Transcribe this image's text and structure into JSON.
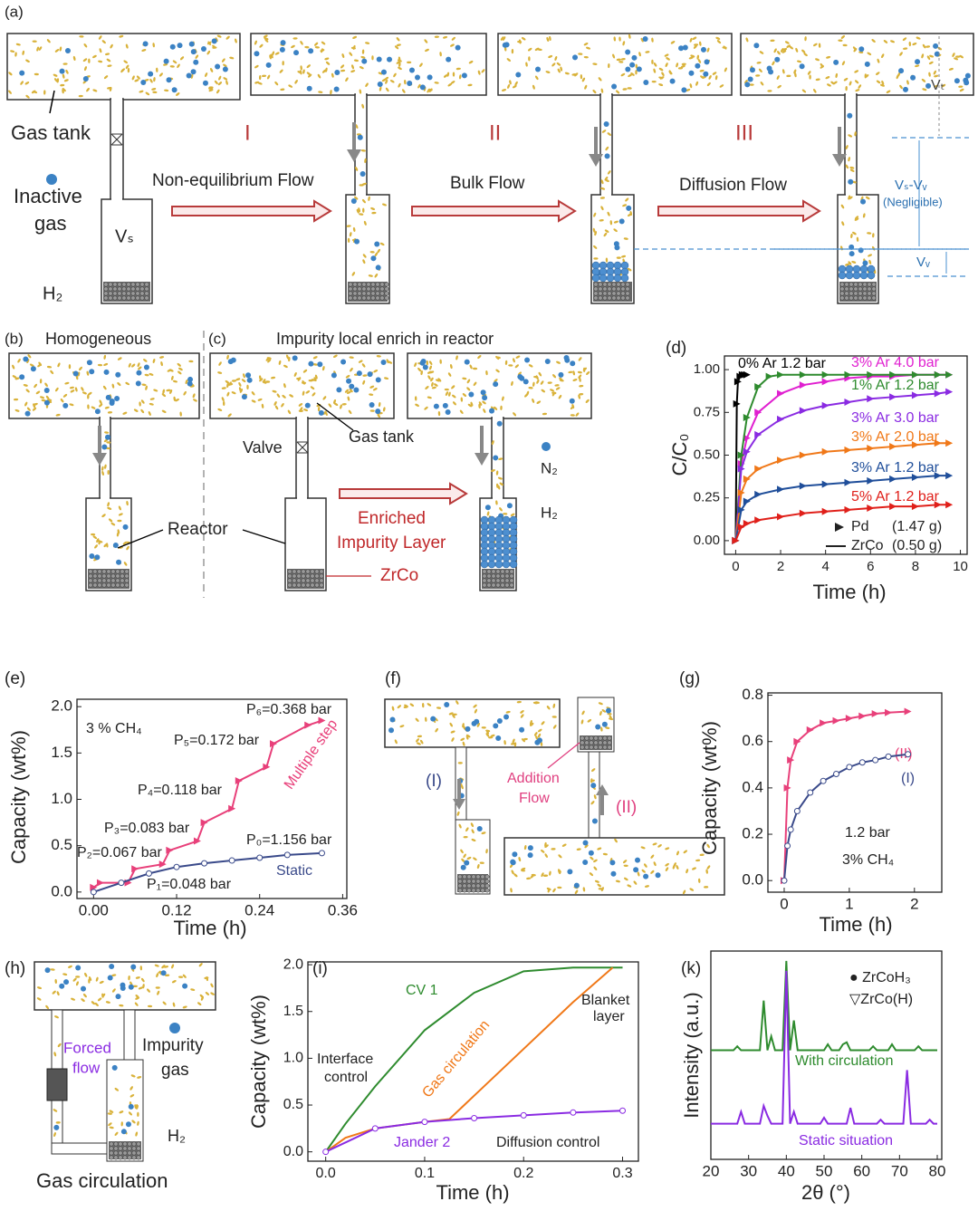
{
  "figure": {
    "labels": [
      "(a)",
      "Gas tank",
      "Inactive",
      "gas",
      "H₂",
      "Vₛ",
      "I",
      "II",
      "III",
      "Non-equilibrium Flow",
      "Bulk Flow",
      "Diffusion Flow",
      "Vₜ",
      "Vₛ-Vᵥ",
      "(Negligible)",
      "Vᵥ",
      "(b)",
      "Homogeneous",
      "(c)",
      "Impurity local enrich in reactor",
      "Reactor",
      "Valve",
      "Gas tank",
      "Enriched",
      "Impurity Layer",
      "ZrCo",
      "N₂",
      "H₂",
      "(d)",
      "(e)",
      "(f)",
      "(I)",
      "Addition",
      "Flow",
      "(II)",
      "(g)",
      "(h)",
      "Forced",
      "flow",
      "Impurity",
      "gas",
      "H₂",
      "Gas circulation",
      "(i)",
      "(k)"
    ]
  },
  "chart_data": [
    {
      "type": "line",
      "xlabel": "Time (h)",
      "ylabel": "C/C₀",
      "xlim": [
        -0.5,
        10.3
      ],
      "ylim": [
        -0.08,
        1.08
      ],
      "xticks": [
        0,
        2,
        4,
        6,
        8,
        10
      ],
      "yticks": [
        {
          "value": 0,
          "label": "0.00"
        },
        {
          "value": 0.25,
          "label": "0.25"
        },
        {
          "value": 0.5,
          "label": "0.50"
        },
        {
          "value": 0.75,
          "label": "0.75"
        },
        {
          "value": 1,
          "label": "1.00"
        }
      ],
      "series": [
        {
          "name": "0% Ar 1.2 bar",
          "color": "#000000",
          "marker": "triangle",
          "x": [
            0,
            0.05,
            0.1,
            0.2,
            0.3,
            0.4,
            0.5
          ],
          "values": [
            0,
            0.8,
            0.93,
            0.96,
            0.97,
            0.97,
            0.97
          ]
        },
        {
          "name": "3% Ar 4.0 bar",
          "color": "#e020d0",
          "marker": "triangle",
          "x": [
            0,
            0.25,
            0.5,
            1,
            2,
            3,
            4,
            5,
            6,
            7,
            8,
            9,
            9.5
          ],
          "values": [
            0,
            0.45,
            0.6,
            0.75,
            0.86,
            0.91,
            0.93,
            0.95,
            0.96,
            0.96,
            0.97,
            0.97,
            0.97
          ]
        },
        {
          "name": "1% Ar 1.2 bar",
          "color": "#2e8b2e",
          "marker": "triangle",
          "x": [
            0,
            0.25,
            0.5,
            1,
            1.5,
            2,
            3,
            4,
            5,
            6,
            7,
            8,
            9,
            9.5
          ],
          "values": [
            0,
            0.5,
            0.72,
            0.9,
            0.96,
            0.97,
            0.97,
            0.97,
            0.97,
            0.97,
            0.97,
            0.97,
            0.97,
            0.97
          ]
        },
        {
          "name": "3% Ar 3.0 bar",
          "color": "#8a2be2",
          "marker": "triangle",
          "x": [
            0,
            0.25,
            0.5,
            1,
            2,
            3,
            4,
            5,
            6,
            7,
            8,
            9,
            9.5
          ],
          "values": [
            0,
            0.42,
            0.52,
            0.62,
            0.71,
            0.76,
            0.79,
            0.81,
            0.83,
            0.84,
            0.85,
            0.86,
            0.87
          ]
        },
        {
          "name": "3% Ar 2.0 bar",
          "color": "#f07818",
          "marker": "triangle",
          "x": [
            0,
            0.25,
            0.5,
            1,
            2,
            3,
            4,
            5,
            6,
            7,
            8,
            9,
            9.5
          ],
          "values": [
            0,
            0.28,
            0.36,
            0.42,
            0.47,
            0.5,
            0.52,
            0.53,
            0.54,
            0.55,
            0.56,
            0.57,
            0.57
          ]
        },
        {
          "name": "3% Ar 1.2 bar",
          "color": "#1f4e9a",
          "marker": "triangle",
          "x": [
            0,
            0.25,
            0.5,
            1,
            2,
            3,
            4,
            5,
            6,
            7,
            8,
            9,
            9.5
          ],
          "values": [
            0,
            0.18,
            0.23,
            0.27,
            0.3,
            0.32,
            0.33,
            0.34,
            0.35,
            0.36,
            0.37,
            0.38,
            0.38
          ]
        },
        {
          "name": "5% Ar 1.2 bar",
          "color": "#e0201a",
          "marker": "triangle",
          "x": [
            0,
            0.25,
            0.5,
            1,
            2,
            3,
            4,
            5,
            6,
            7,
            8,
            9,
            9.5
          ],
          "values": [
            0,
            0.08,
            0.1,
            0.12,
            0.14,
            0.16,
            0.17,
            0.18,
            0.19,
            0.2,
            0.2,
            0.21,
            0.21
          ]
        }
      ],
      "annotations": [
        "Pd",
        "(1.47 g)",
        "ZrCo",
        "(0.50 g)"
      ]
    },
    {
      "type": "line",
      "xlabel": "Time (h)",
      "ylabel": "Capacity (wt%)",
      "xlim": [
        -0.024,
        0.366
      ],
      "ylim": [
        -0.07,
        2.08
      ],
      "xticks": [
        {
          "value": 0,
          "label": "0.00"
        },
        {
          "value": 0.12,
          "label": "0.12"
        },
        {
          "value": 0.24,
          "label": "0.24"
        },
        {
          "value": 0.36,
          "label": "0.36"
        }
      ],
      "yticks": [
        {
          "value": 0,
          "label": "0.0"
        },
        {
          "value": 0.5,
          "label": "0.5"
        },
        {
          "value": 1,
          "label": "1.0"
        },
        {
          "value": 1.5,
          "label": "1.5"
        },
        {
          "value": 2,
          "label": "2.0"
        }
      ],
      "series": [
        {
          "name": "Multiple step",
          "color": "#e8407a",
          "marker": "triangle",
          "x": [
            0,
            0.01,
            0.05,
            0.06,
            0.1,
            0.11,
            0.15,
            0.16,
            0.2,
            0.21,
            0.25,
            0.26,
            0.31,
            0.33
          ],
          "values": [
            0.05,
            0.1,
            0.1,
            0.25,
            0.3,
            0.45,
            0.55,
            0.75,
            0.9,
            1.2,
            1.35,
            1.6,
            1.8,
            1.85
          ]
        },
        {
          "name": "Static",
          "color": "#3a4a8a",
          "marker": "circle",
          "x": [
            0,
            0.04,
            0.08,
            0.12,
            0.16,
            0.2,
            0.24,
            0.28,
            0.33
          ],
          "values": [
            0,
            0.1,
            0.2,
            0.27,
            0.31,
            0.34,
            0.37,
            0.4,
            0.42
          ]
        }
      ],
      "annotations": [
        "3 % CH₄",
        "P₆=0.368 bar",
        "P₅=0.172 bar",
        "P₄=0.118 bar",
        "P₃=0.083 bar",
        "P₂=0.067 bar",
        "P₁=0.048 bar",
        "P₀=1.156 bar"
      ]
    },
    {
      "type": "line",
      "xlabel": "Time (h)",
      "ylabel": "Capacity (wt%)",
      "xlim": [
        -0.25,
        2.42
      ],
      "ylim": [
        -0.05,
        0.81
      ],
      "xticks": [
        0,
        1,
        2
      ],
      "yticks": [
        {
          "value": 0,
          "label": "0.0"
        },
        {
          "value": 0.2,
          "label": "0.2"
        },
        {
          "value": 0.4,
          "label": "0.4"
        },
        {
          "value": 0.6,
          "label": "0.6"
        },
        {
          "value": 0.8,
          "label": "0.8"
        }
      ],
      "series": [
        {
          "name": "(II)",
          "color": "#e8407a",
          "marker": "triangle",
          "x": [
            0,
            0.05,
            0.1,
            0.2,
            0.4,
            0.6,
            0.8,
            1,
            1.2,
            1.4,
            1.6,
            1.9
          ],
          "values": [
            0,
            0.4,
            0.52,
            0.6,
            0.65,
            0.68,
            0.69,
            0.7,
            0.71,
            0.72,
            0.725,
            0.73
          ]
        },
        {
          "name": "(I)",
          "color": "#3a4a8a",
          "marker": "circle",
          "x": [
            0,
            0.05,
            0.1,
            0.2,
            0.4,
            0.6,
            0.8,
            1,
            1.2,
            1.4,
            1.6,
            1.9
          ],
          "values": [
            0,
            0.15,
            0.22,
            0.3,
            0.38,
            0.43,
            0.46,
            0.49,
            0.51,
            0.52,
            0.535,
            0.545
          ]
        }
      ],
      "annotations": [
        "1.2 bar",
        "3% CH₄"
      ]
    },
    {
      "type": "line",
      "xlabel": "Time (h)",
      "ylabel": "Capacity (wt%)",
      "xlim": [
        -0.018,
        0.316
      ],
      "ylim": [
        -0.1,
        2.03
      ],
      "xticks": [
        {
          "value": 0,
          "label": "0.0"
        },
        {
          "value": 0.1,
          "label": "0.1"
        },
        {
          "value": 0.2,
          "label": "0.2"
        },
        {
          "value": 0.3,
          "label": "0.3"
        }
      ],
      "yticks": [
        {
          "value": 0,
          "label": "0.0"
        },
        {
          "value": 0.5,
          "label": "0.5"
        },
        {
          "value": 1,
          "label": "1.0"
        },
        {
          "value": 1.5,
          "label": "1.5"
        },
        {
          "value": 2,
          "label": "2.0"
        }
      ],
      "series": [
        {
          "name": "CV 1",
          "color": "#2e8b2e",
          "marker": "none",
          "x": [
            0,
            0.02,
            0.05,
            0.1,
            0.15,
            0.2,
            0.25,
            0.3
          ],
          "values": [
            0,
            0.3,
            0.7,
            1.3,
            1.7,
            1.93,
            1.97,
            1.97
          ]
        },
        {
          "name": "Gas circulation",
          "color": "#f07818",
          "marker": "none",
          "x": [
            0,
            0.02,
            0.05,
            0.1,
            0.125,
            0.15,
            0.2,
            0.25,
            0.29
          ],
          "values": [
            0,
            0.15,
            0.25,
            0.32,
            0.35,
            0.6,
            1.1,
            1.6,
            1.97
          ]
        },
        {
          "name": "Jander 2",
          "color": "#8a2be2",
          "marker": "circle",
          "x": [
            0,
            0.05,
            0.1,
            0.15,
            0.2,
            0.25,
            0.3
          ],
          "values": [
            0,
            0.25,
            0.32,
            0.36,
            0.39,
            0.42,
            0.44
          ]
        }
      ],
      "annotations": [
        "Diffusion control",
        "Interface",
        "control",
        "Blanket",
        "layer"
      ]
    },
    {
      "type": "line",
      "xlabel": "2θ (°)",
      "ylabel": "Intensity (a.u.)",
      "xlim": [
        20,
        81.2
      ],
      "ylim": [
        0,
        105
      ],
      "xticks": [
        20,
        30,
        40,
        50,
        60,
        70,
        80
      ],
      "series": [
        {
          "name": "With circulation",
          "color": "#2e8b2e",
          "marker": "none",
          "x": [
            20,
            21,
            22,
            23,
            24,
            25,
            26,
            27,
            28,
            29,
            30,
            31,
            32,
            33,
            34,
            35,
            36,
            37,
            38,
            39,
            40,
            41,
            42,
            43,
            44,
            45,
            46,
            47,
            48,
            49,
            50,
            51,
            52,
            53,
            54,
            55,
            56,
            57,
            58,
            59,
            60,
            61,
            62,
            63,
            64,
            65,
            66,
            67,
            68,
            69,
            70,
            71,
            72,
            73,
            74,
            75,
            76,
            77,
            78,
            79,
            80
          ],
          "values": [
            55,
            55,
            55,
            55,
            55,
            55,
            55,
            57,
            55,
            55,
            55,
            55,
            55,
            55,
            80,
            55,
            62,
            55,
            55,
            55,
            100,
            55,
            70,
            55,
            55,
            55,
            55,
            55,
            55,
            55,
            55,
            58,
            55,
            55,
            55,
            58,
            59,
            55,
            55,
            55,
            55,
            55,
            55,
            57,
            55,
            55,
            55,
            55,
            58,
            55,
            55,
            55,
            55,
            55,
            55,
            57,
            55,
            55,
            55,
            55,
            55
          ]
        },
        {
          "name": "Static situation",
          "color": "#8a2be2",
          "marker": "none",
          "x": [
            20,
            21,
            22,
            23,
            24,
            25,
            26,
            27,
            28,
            29,
            30,
            31,
            32,
            33,
            34,
            35,
            36,
            37,
            38,
            39,
            40,
            41,
            42,
            43,
            44,
            45,
            46,
            47,
            48,
            49,
            50,
            51,
            52,
            53,
            54,
            55,
            56,
            57,
            58,
            59,
            60,
            61,
            62,
            63,
            64,
            65,
            66,
            67,
            68,
            69,
            70,
            71,
            72,
            73,
            74,
            75,
            76,
            77,
            78,
            79,
            80
          ],
          "values": [
            18,
            18,
            18,
            18,
            18,
            18,
            18,
            18,
            24,
            18,
            18,
            18,
            18,
            18,
            27,
            22,
            18,
            18,
            18,
            18,
            95,
            18,
            24,
            18,
            18,
            18,
            18,
            18,
            18,
            18,
            21,
            18,
            18,
            18,
            18,
            18,
            18,
            26,
            18,
            18,
            18,
            18,
            18,
            18,
            18,
            20,
            18,
            18,
            18,
            18,
            18,
            18,
            45,
            18,
            18,
            18,
            18,
            18,
            20,
            18,
            18
          ]
        }
      ],
      "annotations": [
        "● ZrCoH₃",
        "▽ZrCo(H)"
      ]
    }
  ]
}
